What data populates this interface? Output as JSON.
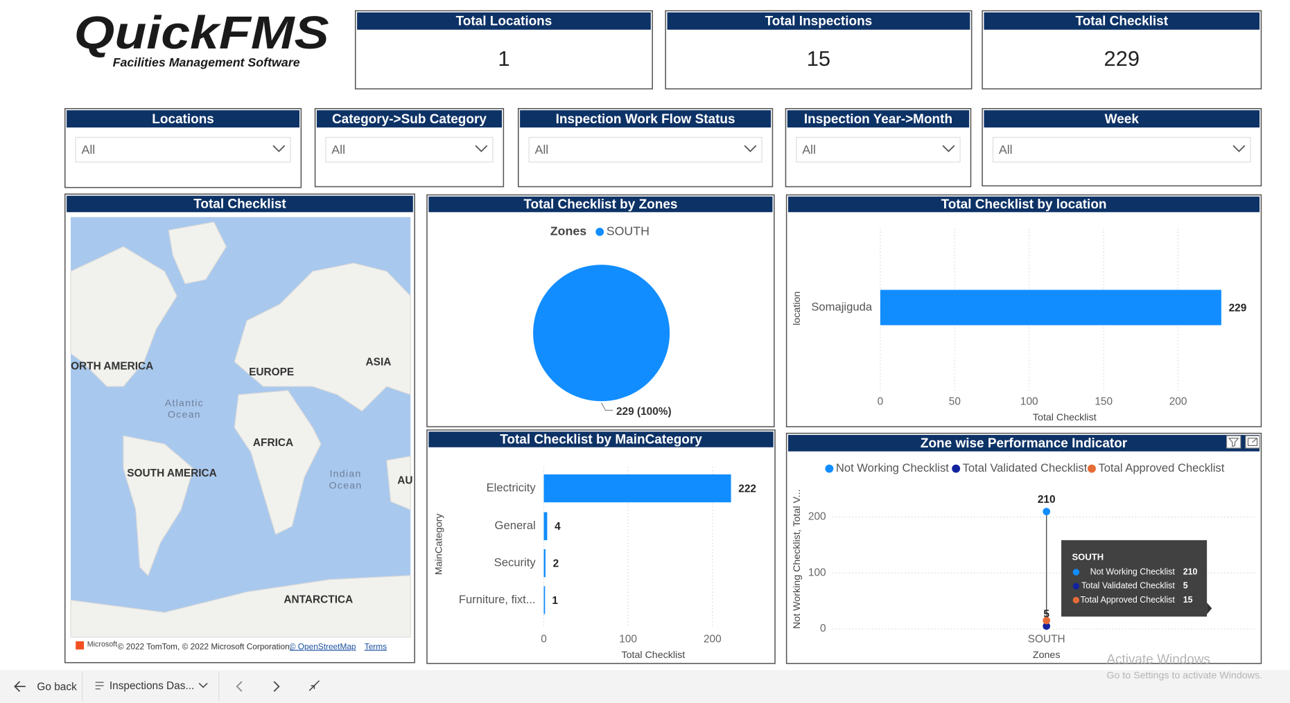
{
  "logo": {
    "title": "QuickFMS",
    "subtitle": "Facilities Management Software"
  },
  "cards": [
    {
      "title": "Total Locations",
      "value": 1
    },
    {
      "title": "Total Inspections",
      "value": 15
    },
    {
      "title": "Total Checklist",
      "value": 229
    }
  ],
  "filters": [
    {
      "title": "Locations",
      "value": "All"
    },
    {
      "title": "Category->Sub Category",
      "value": "All"
    },
    {
      "title": "Inspection Work Flow Status",
      "value": "All"
    },
    {
      "title": "Inspection Year->Month",
      "value": "All"
    },
    {
      "title": "Week",
      "value": "All"
    }
  ],
  "map": {
    "title": "Total Checklist",
    "labels": [
      "ORTH AMERICA",
      "EUROPE",
      "ASIA",
      "AFRICA",
      "SOUTH AMERICA",
      "ANTARCTICA",
      "AU"
    ],
    "oceans": [
      [
        "Atlantic",
        "Ocean"
      ],
      [
        "Indian",
        "Ocean"
      ]
    ],
    "brand": "Microsoft",
    "attribution": "© 2022 TomTom, © 2022 Microsoft Corporation,",
    "osm": "© OpenStreetMap",
    "terms": "Terms"
  },
  "chart_data": [
    {
      "type": "pie",
      "title": "Total Checklist by Zones",
      "legend_title": "Zones",
      "categories": [
        "SOUTH"
      ],
      "values": [
        229
      ],
      "value_labels": [
        "229 (100%)"
      ],
      "colors": [
        "#118DFF"
      ]
    },
    {
      "type": "bar",
      "orientation": "horizontal",
      "title": "Total Checklist by location",
      "categories": [
        "Somajiguda"
      ],
      "values": [
        229
      ],
      "color": "#118DFF",
      "xlim": [
        0,
        230
      ],
      "xticks": [
        0,
        50,
        100,
        150,
        200
      ],
      "grid": true,
      "xlabel": "Total Checklist",
      "ylabel": "location"
    },
    {
      "type": "bar",
      "orientation": "horizontal",
      "title": "Total Checklist by MainCategory",
      "categories": [
        "Electricity",
        "General",
        "Security",
        "Furniture, fixt..."
      ],
      "values": [
        222,
        4,
        2,
        1
      ],
      "color": "#118DFF",
      "xlim": [
        0,
        230
      ],
      "xticks": [
        0,
        100,
        200
      ],
      "grid": true,
      "xlabel": "Total Checklist",
      "ylabel": "MainCategory"
    },
    {
      "type": "scatter",
      "title": "Zone wise Performance Indicator",
      "categories": [
        "SOUTH"
      ],
      "series": [
        {
          "name": "Not Working Checklist",
          "color": "#118DFF",
          "values": [
            210
          ]
        },
        {
          "name": "Total Validated Checklist",
          "color": "#12239E",
          "values": [
            5
          ]
        },
        {
          "name": "Total Approved Checklist",
          "color": "#E66C37",
          "values": [
            15
          ]
        }
      ],
      "ylim": [
        0,
        250
      ],
      "yticks": [
        0,
        100,
        200
      ],
      "grid": true,
      "xlabel": "Zones",
      "ylabel": "Not Working Checklist, Total V...",
      "tooltip_title": "SOUTH"
    }
  ],
  "footer": {
    "back": "Go back",
    "page": "Inspections Das..."
  },
  "watermark": {
    "title": "Activate Windows",
    "text": "Go to Settings to activate Windows."
  }
}
